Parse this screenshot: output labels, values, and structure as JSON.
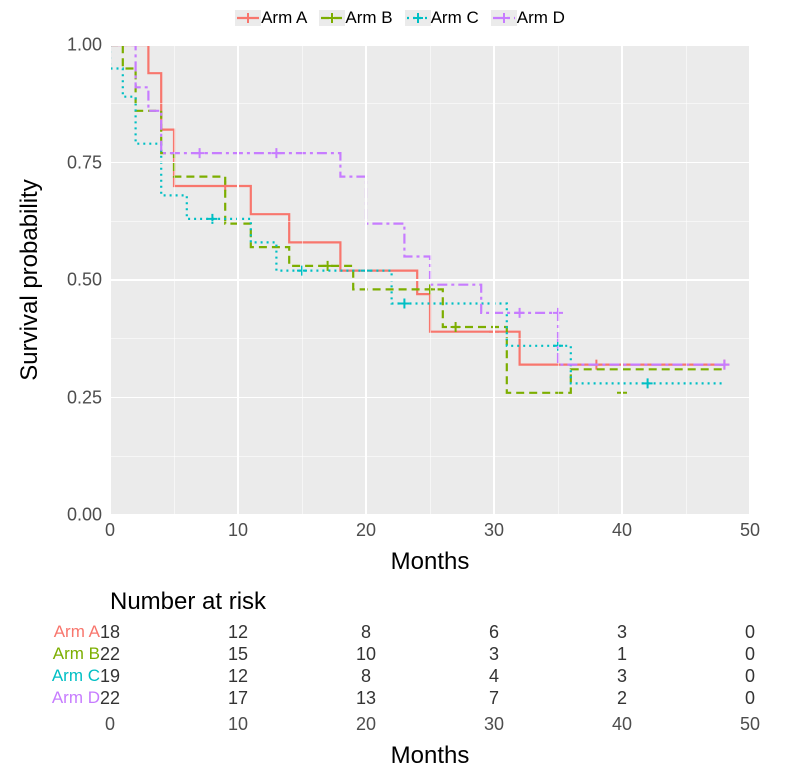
{
  "chart": {
    "type": "kaplan-meier",
    "background_color": "#ffffff",
    "panel_color": "#ebebeb",
    "grid_color": "#ffffff",
    "xlim": [
      0,
      50
    ],
    "ylim": [
      0,
      1
    ],
    "xticks": [
      0,
      10,
      20,
      30,
      40,
      50
    ],
    "yticks": [
      0.0,
      0.25,
      0.5,
      0.75,
      1.0
    ],
    "xtick_labels": [
      "0",
      "10",
      "20",
      "30",
      "40",
      "50"
    ],
    "ytick_labels": [
      "0.00",
      "0.25",
      "0.50",
      "0.75",
      "1.00"
    ],
    "xlabel": "Months",
    "ylabel": "Survival probability",
    "label_fontsize": 24,
    "tick_fontsize": 18,
    "line_width": 2.2,
    "series": [
      {
        "name": "Arm A",
        "color": "#f8766d",
        "dash": "solid",
        "steps": [
          [
            0,
            1.0
          ],
          [
            3,
            1.0
          ],
          [
            3,
            0.94
          ],
          [
            4,
            0.94
          ],
          [
            4,
            0.82
          ],
          [
            5,
            0.82
          ],
          [
            5,
            0.7
          ],
          [
            11,
            0.7
          ],
          [
            11,
            0.64
          ],
          [
            14,
            0.64
          ],
          [
            14,
            0.58
          ],
          [
            18,
            0.58
          ],
          [
            18,
            0.52
          ],
          [
            24,
            0.52
          ],
          [
            24,
            0.47
          ],
          [
            25,
            0.47
          ],
          [
            25,
            0.39
          ],
          [
            32,
            0.39
          ],
          [
            32,
            0.32
          ],
          [
            48,
            0.32
          ]
        ],
        "censors": [
          [
            9,
            0.7
          ],
          [
            30,
            0.39
          ],
          [
            38,
            0.32
          ],
          [
            48,
            0.32
          ]
        ]
      },
      {
        "name": "Arm B",
        "color": "#7cae00",
        "dash": "8 5",
        "steps": [
          [
            0,
            1.0
          ],
          [
            1,
            1.0
          ],
          [
            1,
            0.95
          ],
          [
            2,
            0.95
          ],
          [
            2,
            0.86
          ],
          [
            4,
            0.86
          ],
          [
            4,
            0.77
          ],
          [
            5,
            0.77
          ],
          [
            5,
            0.72
          ],
          [
            9,
            0.72
          ],
          [
            9,
            0.62
          ],
          [
            11,
            0.62
          ],
          [
            11,
            0.57
          ],
          [
            14,
            0.57
          ],
          [
            14,
            0.53
          ],
          [
            19,
            0.53
          ],
          [
            19,
            0.48
          ],
          [
            26,
            0.48
          ],
          [
            26,
            0.4
          ],
          [
            31,
            0.4
          ],
          [
            31,
            0.26
          ],
          [
            36,
            0.26
          ],
          [
            36,
            0.31
          ],
          [
            48,
            0.31
          ]
        ],
        "censors": [
          [
            17,
            0.53
          ],
          [
            25,
            0.48
          ],
          [
            27,
            0.4
          ],
          [
            40,
            0.26
          ]
        ]
      },
      {
        "name": "Arm C",
        "color": "#00bfc4",
        "dash": "2 4",
        "steps": [
          [
            0,
            1.0
          ],
          [
            0,
            0.95
          ],
          [
            1,
            0.95
          ],
          [
            1,
            0.89
          ],
          [
            2,
            0.89
          ],
          [
            2,
            0.79
          ],
          [
            4,
            0.79
          ],
          [
            4,
            0.68
          ],
          [
            6,
            0.68
          ],
          [
            6,
            0.63
          ],
          [
            11,
            0.63
          ],
          [
            11,
            0.58
          ],
          [
            13,
            0.58
          ],
          [
            13,
            0.52
          ],
          [
            22,
            0.52
          ],
          [
            22,
            0.45
          ],
          [
            31,
            0.45
          ],
          [
            31,
            0.36
          ],
          [
            36,
            0.36
          ],
          [
            36,
            0.28
          ],
          [
            48,
            0.28
          ]
        ],
        "censors": [
          [
            8,
            0.63
          ],
          [
            15,
            0.52
          ],
          [
            20,
            0.52
          ],
          [
            23,
            0.45
          ],
          [
            35,
            0.36
          ],
          [
            42,
            0.28
          ]
        ]
      },
      {
        "name": "Arm D",
        "color": "#c77cff",
        "dash": "10 4 3 4",
        "steps": [
          [
            0,
            1.0
          ],
          [
            2,
            1.0
          ],
          [
            2,
            0.91
          ],
          [
            3,
            0.91
          ],
          [
            3,
            0.86
          ],
          [
            4,
            0.86
          ],
          [
            4,
            0.77
          ],
          [
            18,
            0.77
          ],
          [
            18,
            0.72
          ],
          [
            20,
            0.72
          ],
          [
            20,
            0.62
          ],
          [
            23,
            0.62
          ],
          [
            23,
            0.55
          ],
          [
            25,
            0.55
          ],
          [
            25,
            0.49
          ],
          [
            29,
            0.49
          ],
          [
            29,
            0.43
          ],
          [
            35,
            0.43
          ],
          [
            35,
            0.32
          ],
          [
            48,
            0.32
          ]
        ],
        "censors": [
          [
            7,
            0.77
          ],
          [
            13,
            0.77
          ],
          [
            32,
            0.43
          ],
          [
            35,
            0.43
          ],
          [
            48,
            0.32
          ]
        ]
      }
    ]
  },
  "risk_table": {
    "title": "Number at risk",
    "times": [
      0,
      10,
      20,
      30,
      40,
      50
    ],
    "time_labels": [
      "0",
      "10",
      "20",
      "30",
      "40",
      "50"
    ],
    "xlabel": "Months",
    "rows": [
      {
        "label": "Arm A",
        "color": "#f8766d",
        "values": [
          "18",
          "12",
          "8",
          "6",
          "3",
          "0"
        ]
      },
      {
        "label": "Arm B",
        "color": "#7cae00",
        "values": [
          "22",
          "15",
          "10",
          "3",
          "1",
          "0"
        ]
      },
      {
        "label": "Arm C",
        "color": "#00bfc4",
        "values": [
          "19",
          "12",
          "8",
          "4",
          "3",
          "0"
        ]
      },
      {
        "label": "Arm D",
        "color": "#c77cff",
        "values": [
          "22",
          "17",
          "13",
          "7",
          "2",
          "0"
        ]
      }
    ]
  },
  "legend": {
    "items": [
      {
        "label": "Arm A",
        "color": "#f8766d",
        "dash": "solid"
      },
      {
        "label": "Arm B",
        "color": "#7cae00",
        "dash": "8 5"
      },
      {
        "label": "Arm C",
        "color": "#00bfc4",
        "dash": "2 4"
      },
      {
        "label": "Arm D",
        "color": "#c77cff",
        "dash": "10 4 3 4"
      }
    ]
  }
}
